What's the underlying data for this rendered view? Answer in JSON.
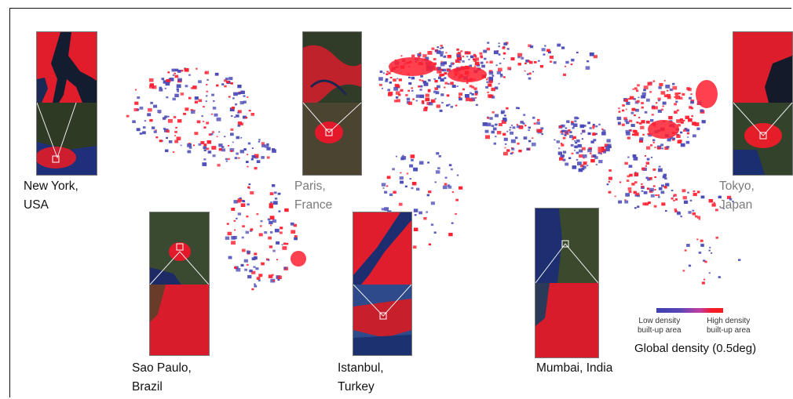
{
  "cities": [
    {
      "id": "new-york",
      "label": "New York,\nUSA",
      "label_color": "dark"
    },
    {
      "id": "paris",
      "label": "Paris,\nFrance",
      "label_color": "grey"
    },
    {
      "id": "tokyo",
      "label": "Tokyo,\nJapan",
      "label_color": "grey"
    },
    {
      "id": "sao-paulo",
      "label": "Sao Paulo,\nBrazil",
      "label_color": "dark"
    },
    {
      "id": "istanbul",
      "label": "Istanbul,\nTurkey",
      "label_color": "dark"
    },
    {
      "id": "mumbai",
      "label": "Mumbai, India",
      "label_color": "dark"
    }
  ],
  "legend": {
    "low_label": "Low density\nbuilt-up area",
    "high_label": "High density\nbuilt-up area",
    "title": "Global density (0.5deg)",
    "low_color": "#3b3fb0",
    "high_color": "#ff1a1a"
  },
  "colors": {
    "built_up_high": "#ff2030",
    "built_up_low": "#4a4ab8",
    "terrain": "#2e3a26",
    "water": "#1e2f6a"
  }
}
